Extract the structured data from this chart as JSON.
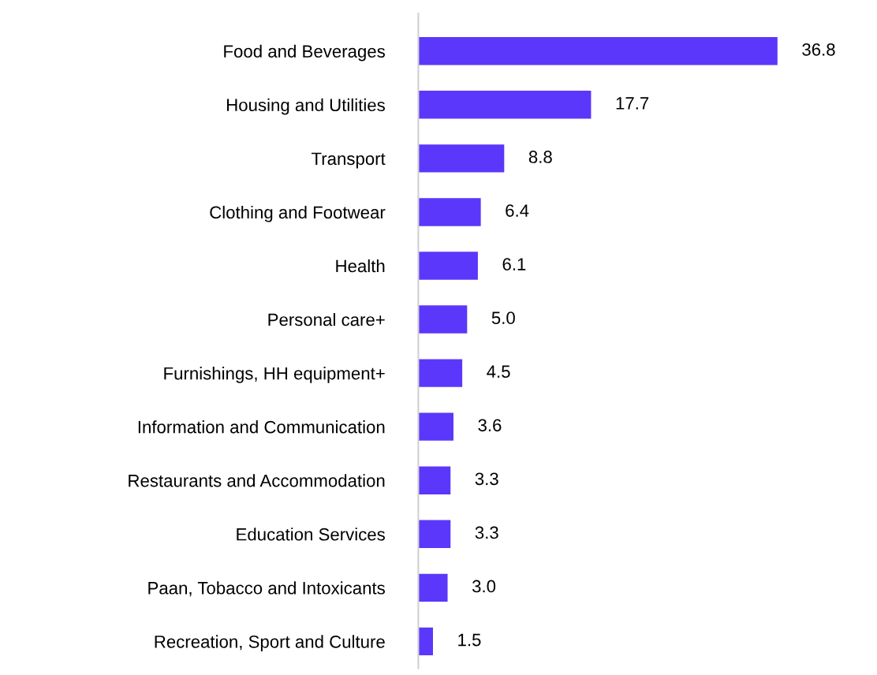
{
  "chart_data": {
    "type": "bar",
    "orientation": "horizontal",
    "categories": [
      "Food and Beverages",
      "Housing and Utilities",
      "Transport",
      "Clothing and Footwear",
      "Health",
      "Personal care+",
      "Furnishings, HH equipment+",
      "Information and Communication",
      "Restaurants and Accommodation",
      "Education Services",
      "Paan, Tobacco and Intoxicants",
      "Recreation, Sport and Culture"
    ],
    "values": [
      36.8,
      17.7,
      8.8,
      6.4,
      6.1,
      5.0,
      4.5,
      3.6,
      3.3,
      3.3,
      3.0,
      1.5
    ],
    "value_labels": [
      "36.8",
      "17.7",
      "8.8",
      "6.4",
      "6.1",
      "5.0",
      "4.5",
      "3.6",
      "3.3",
      "3.3",
      "3.0",
      "1.5"
    ],
    "color": "#5b37fb",
    "tick_labels": "y",
    "grid": false,
    "legend": false
  }
}
